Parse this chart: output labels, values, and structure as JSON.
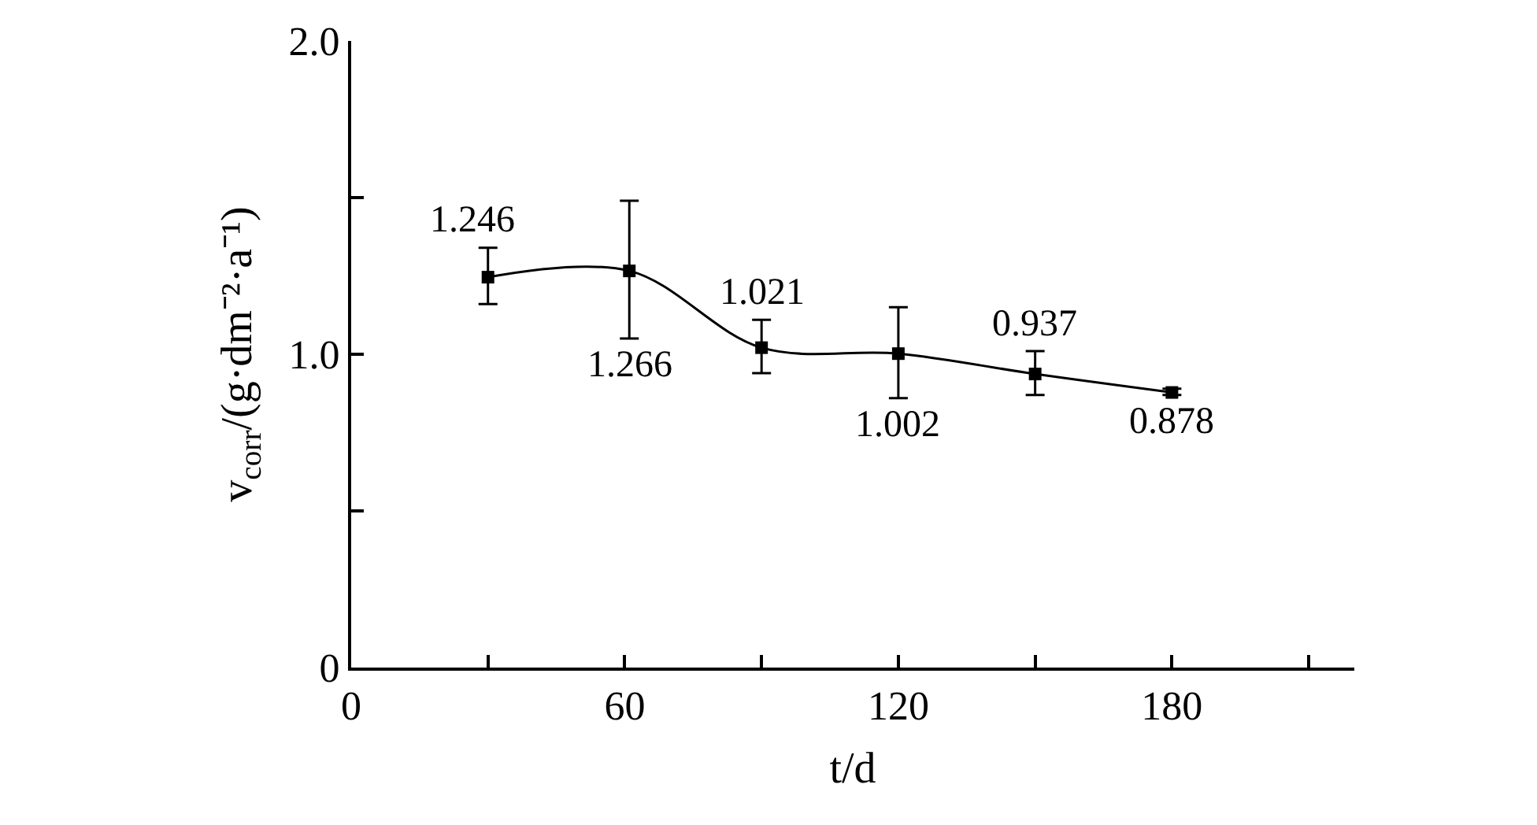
{
  "chart_data": {
    "type": "line",
    "xlabel": "t/d",
    "ylabel": "v$_{corr}$/(g·dm⁻²·a⁻¹)",
    "x": [
      30,
      61,
      90,
      120,
      150,
      180
    ],
    "series": [
      {
        "color": "#000000",
        "values": [
          1.246,
          1.266,
          1.021,
          1.002,
          0.937,
          0.878
        ],
        "errors": [
          [
            1.16,
            1.34
          ],
          [
            1.05,
            1.49
          ],
          [
            0.94,
            1.11
          ],
          [
            0.86,
            1.15
          ],
          [
            0.87,
            1.01
          ],
          [
            0.87,
            0.89
          ]
        ]
      }
    ],
    "data_labels": true,
    "marker": "square",
    "line_style": "solid",
    "xlim": [
      0,
      220
    ],
    "xticks": [
      0,
      {
        "value": 30,
        "label": null
      },
      60,
      {
        "value": 90,
        "label": null
      },
      120,
      {
        "value": 150,
        "label": null
      },
      180,
      {
        "value": 210,
        "label": null
      }
    ],
    "ylim": [
      0,
      2
    ],
    "yticks": [
      0,
      {
        "value": 0.5,
        "label": null
      },
      {
        "value": 1,
        "label": "1.0"
      },
      {
        "value": 1.5,
        "label": null
      },
      {
        "value": 2,
        "label": "2.0"
      }
    ]
  }
}
